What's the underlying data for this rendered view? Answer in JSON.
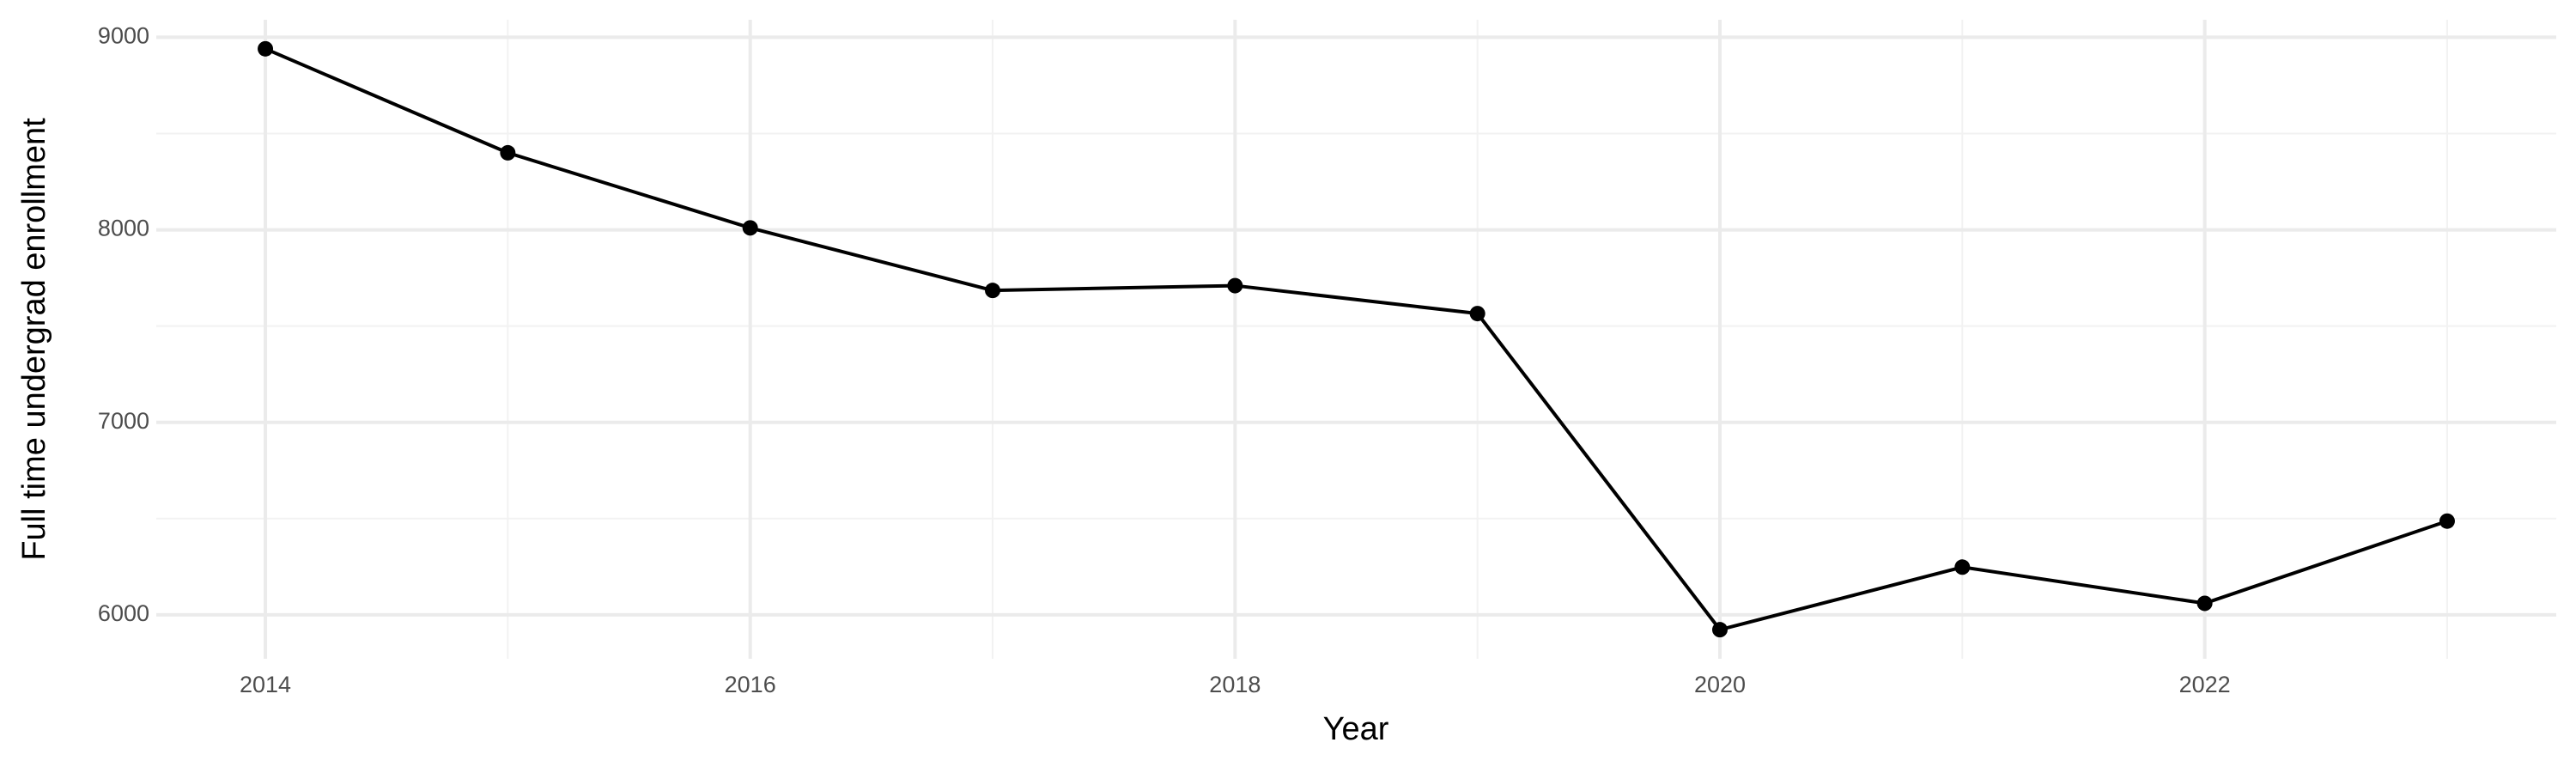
{
  "chart_data": {
    "type": "line",
    "x": [
      2014,
      2015,
      2016,
      2017,
      2018,
      2019,
      2020,
      2021,
      2022,
      2023
    ],
    "values": [
      8940,
      8400,
      8010,
      7685,
      7710,
      7565,
      5923,
      6248,
      6060,
      6487
    ],
    "color": "#000000",
    "x_label": "Year",
    "y_label": "Full time undergrad enrollment",
    "xlim": [
      2013.55,
      2023.45
    ],
    "xticks": [
      2014,
      2016,
      2018,
      2020,
      2022
    ],
    "ylim": [
      5772,
      9091
    ],
    "yticks": [
      6000,
      7000,
      8000,
      9000
    ],
    "grid": true
  }
}
